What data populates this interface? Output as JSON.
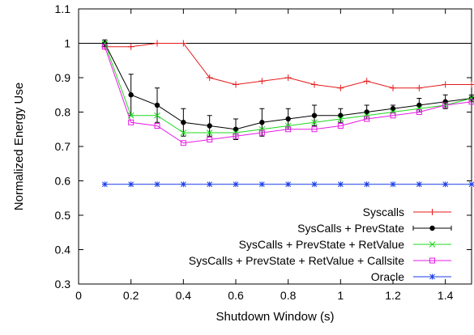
{
  "chart_data": {
    "type": "line",
    "title": "",
    "xlabel": "Shutdown Window (s)",
    "ylabel": "Normalized Energy Use",
    "xlim": [
      0,
      1.5
    ],
    "ylim": [
      0.3,
      1.1
    ],
    "xticks": [
      0,
      0.2,
      0.4,
      0.6,
      0.8,
      1,
      1.2,
      1.4
    ],
    "xtick_labels": [
      "0",
      "0.2",
      "0.4",
      "0.6",
      "0.8",
      "1",
      "1.2",
      "1.4"
    ],
    "yticks": [
      0.3,
      0.4,
      0.5,
      0.6,
      0.7,
      0.8,
      0.9,
      1,
      1.1
    ],
    "ytick_labels": [
      "0.3",
      "0.4",
      "0.5",
      "0.6",
      "0.7",
      "0.8",
      "0.9",
      "1",
      "1.1"
    ],
    "reference_line": 1.0,
    "grid": false,
    "legend_position": "bottom-right",
    "x": [
      0.1,
      0.2,
      0.3,
      0.4,
      0.5,
      0.6,
      0.7,
      0.8,
      0.9,
      1.0,
      1.1,
      1.2,
      1.3,
      1.4,
      1.5
    ],
    "series": [
      {
        "name": "Syscalls",
        "color": "#e41a1c",
        "marker": "plus",
        "values": [
          0.99,
          0.99,
          1.0,
          1.0,
          0.9,
          0.88,
          0.89,
          0.9,
          0.88,
          0.87,
          0.89,
          0.87,
          0.87,
          0.88,
          0.88
        ]
      },
      {
        "name": "SysCalls + PrevState",
        "color": "#000000",
        "marker": "dot",
        "values": [
          1.0,
          0.85,
          0.82,
          0.77,
          0.76,
          0.75,
          0.77,
          0.78,
          0.79,
          0.79,
          0.8,
          0.81,
          0.82,
          0.83,
          0.84
        ],
        "error": [
          0.01,
          0.06,
          0.05,
          0.04,
          0.03,
          0.03,
          0.04,
          0.03,
          0.03,
          0.02,
          0.02,
          0.01,
          0.02,
          0.02,
          0.01
        ]
      },
      {
        "name": "SysCalls + PrevState + RetValue",
        "color": "#1fd81f",
        "marker": "x",
        "values": [
          1.0,
          0.79,
          0.79,
          0.74,
          0.74,
          0.74,
          0.75,
          0.76,
          0.77,
          0.78,
          0.79,
          0.8,
          0.81,
          0.82,
          0.84
        ]
      },
      {
        "name": "SysCalls + PrevState + RetValue + Callsite",
        "color": "#e619e6",
        "marker": "square",
        "values": [
          0.99,
          0.77,
          0.76,
          0.71,
          0.72,
          0.73,
          0.74,
          0.75,
          0.75,
          0.76,
          0.78,
          0.79,
          0.8,
          0.82,
          0.83
        ]
      },
      {
        "name": "Oracle",
        "color": "#1a3ee8",
        "marker": "star",
        "values": [
          0.59,
          0.59,
          0.59,
          0.59,
          0.59,
          0.59,
          0.59,
          0.59,
          0.59,
          0.59,
          0.59,
          0.59,
          0.59,
          0.59,
          0.59
        ]
      }
    ]
  }
}
